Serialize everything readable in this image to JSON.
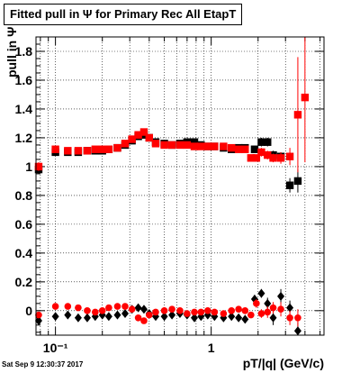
{
  "chart_data": {
    "type": "scatter",
    "title": "Fitted pull in  Ψ  for Primary Rec All EtapT",
    "xlabel": "pT/|q| (GeV/c)",
    "ylabel": "pull in  Ψ",
    "footer": "Sat Sep  9 12:30:37 2017",
    "xscale": "log",
    "xlim": [
      0.075,
      5.3
    ],
    "ylim": [
      -0.17,
      1.9
    ],
    "grid": true,
    "x_ticks": [
      {
        "value": 0.1,
        "label": "10⁻¹"
      },
      {
        "value": 1,
        "label": "1"
      }
    ],
    "y_ticks": [
      {
        "value": 0,
        "label": "0"
      },
      {
        "value": 0.2,
        "label": "0.2"
      },
      {
        "value": 0.4,
        "label": "0.4"
      },
      {
        "value": 0.6,
        "label": "0.6"
      },
      {
        "value": 0.8,
        "label": "0.8"
      },
      {
        "value": 1,
        "label": "1"
      },
      {
        "value": 1.2,
        "label": "1.2"
      },
      {
        "value": 1.4,
        "label": "1.4"
      },
      {
        "value": 1.6,
        "label": "1.6"
      },
      {
        "value": 1.8,
        "label": "1.8"
      }
    ],
    "series": [
      {
        "color": "#000000",
        "marker": "square",
        "points": [
          [
            0.078,
            0.98,
            0.03
          ],
          [
            0.1,
            1.1,
            0.01
          ],
          [
            0.12,
            1.1,
            0.01
          ],
          [
            0.14,
            1.1,
            0.01
          ],
          [
            0.16,
            1.11,
            0.01
          ],
          [
            0.18,
            1.11,
            0.01
          ],
          [
            0.2,
            1.11,
            0.01
          ],
          [
            0.22,
            1.12,
            0.01
          ],
          [
            0.25,
            1.13,
            0.01
          ],
          [
            0.28,
            1.15,
            0.01
          ],
          [
            0.31,
            1.18,
            0.01
          ],
          [
            0.34,
            1.21,
            0.01
          ],
          [
            0.37,
            1.22,
            0.01
          ],
          [
            0.4,
            1.2,
            0.01
          ],
          [
            0.44,
            1.17,
            0.01
          ],
          [
            0.5,
            1.16,
            0.01
          ],
          [
            0.56,
            1.15,
            0.01
          ],
          [
            0.63,
            1.16,
            0.01
          ],
          [
            0.7,
            1.17,
            0.01
          ],
          [
            0.78,
            1.17,
            0.01
          ],
          [
            0.86,
            1.15,
            0.01
          ],
          [
            0.95,
            1.14,
            0.01
          ],
          [
            1.05,
            1.14,
            0.01
          ],
          [
            1.2,
            1.13,
            0.01
          ],
          [
            1.35,
            1.12,
            0.01
          ],
          [
            1.5,
            1.13,
            0.01
          ],
          [
            1.65,
            1.13,
            0.01
          ],
          [
            1.9,
            1.12,
            0.02
          ],
          [
            2.1,
            1.17,
            0.03
          ],
          [
            2.3,
            1.17,
            0.03
          ],
          [
            2.5,
            1.08,
            0.03
          ],
          [
            2.8,
            1.07,
            0.03
          ],
          [
            3.2,
            0.87,
            0.05
          ],
          [
            3.6,
            0.9,
            0.08
          ]
        ]
      },
      {
        "color": "#000000",
        "marker": "diamond",
        "points": [
          [
            0.078,
            -0.07,
            0.02
          ],
          [
            0.1,
            -0.04,
            0.01
          ],
          [
            0.12,
            -0.03,
            0.01
          ],
          [
            0.14,
            -0.05,
            0.01
          ],
          [
            0.16,
            -0.05,
            0.01
          ],
          [
            0.18,
            -0.04,
            0.01
          ],
          [
            0.2,
            -0.03,
            0.01
          ],
          [
            0.22,
            -0.04,
            0.01
          ],
          [
            0.25,
            -0.03,
            0.01
          ],
          [
            0.28,
            -0.02,
            0.01
          ],
          [
            0.31,
            0.01,
            0.01
          ],
          [
            0.34,
            0.02,
            0.01
          ],
          [
            0.37,
            0.01,
            0.01
          ],
          [
            0.4,
            -0.02,
            0.01
          ],
          [
            0.44,
            -0.04,
            0.01
          ],
          [
            0.5,
            -0.04,
            0.01
          ],
          [
            0.56,
            -0.03,
            0.01
          ],
          [
            0.63,
            -0.02,
            0.01
          ],
          [
            0.7,
            -0.03,
            0.01
          ],
          [
            0.78,
            -0.05,
            0.01
          ],
          [
            0.86,
            -0.04,
            0.01
          ],
          [
            0.95,
            -0.03,
            0.01
          ],
          [
            1.05,
            -0.04,
            0.01
          ],
          [
            1.2,
            -0.05,
            0.01
          ],
          [
            1.35,
            -0.04,
            0.01
          ],
          [
            1.5,
            -0.05,
            0.01
          ],
          [
            1.65,
            -0.06,
            0.02
          ],
          [
            1.9,
            0.08,
            0.03
          ],
          [
            2.1,
            0.12,
            0.03
          ],
          [
            2.3,
            0.05,
            0.04
          ],
          [
            2.5,
            -0.05,
            0.05
          ],
          [
            2.8,
            0.1,
            0.05
          ],
          [
            3.2,
            0.02,
            0.05
          ],
          [
            3.6,
            -0.14,
            0.06
          ]
        ]
      },
      {
        "color": "#ff0000",
        "marker": "square",
        "points": [
          [
            0.078,
            1.0,
            0.03
          ],
          [
            0.1,
            1.12,
            0.01
          ],
          [
            0.12,
            1.11,
            0.01
          ],
          [
            0.14,
            1.11,
            0.01
          ],
          [
            0.16,
            1.11,
            0.01
          ],
          [
            0.18,
            1.12,
            0.01
          ],
          [
            0.2,
            1.12,
            0.01
          ],
          [
            0.22,
            1.12,
            0.01
          ],
          [
            0.25,
            1.13,
            0.01
          ],
          [
            0.28,
            1.16,
            0.01
          ],
          [
            0.31,
            1.19,
            0.01
          ],
          [
            0.34,
            1.22,
            0.01
          ],
          [
            0.37,
            1.24,
            0.01
          ],
          [
            0.4,
            1.2,
            0.01
          ],
          [
            0.44,
            1.16,
            0.01
          ],
          [
            0.5,
            1.15,
            0.01
          ],
          [
            0.56,
            1.15,
            0.01
          ],
          [
            0.63,
            1.15,
            0.01
          ],
          [
            0.7,
            1.15,
            0.01
          ],
          [
            0.78,
            1.14,
            0.01
          ],
          [
            0.86,
            1.14,
            0.01
          ],
          [
            0.95,
            1.14,
            0.01
          ],
          [
            1.05,
            1.14,
            0.01
          ],
          [
            1.2,
            1.14,
            0.01
          ],
          [
            1.35,
            1.13,
            0.01
          ],
          [
            1.5,
            1.12,
            0.01
          ],
          [
            1.65,
            1.12,
            0.02
          ],
          [
            1.8,
            1.06,
            0.02
          ],
          [
            1.95,
            1.06,
            0.02
          ],
          [
            2.1,
            1.1,
            0.03
          ],
          [
            2.3,
            1.08,
            0.03
          ],
          [
            2.5,
            1.06,
            0.03
          ],
          [
            2.8,
            1.06,
            0.04
          ],
          [
            3.2,
            1.07,
            0.06
          ],
          [
            3.6,
            1.36,
            0.4
          ],
          [
            4.0,
            1.48,
            0.45
          ]
        ]
      },
      {
        "color": "#ff0000",
        "marker": "circle",
        "points": [
          [
            0.078,
            -0.03,
            0.02
          ],
          [
            0.1,
            0.03,
            0.01
          ],
          [
            0.12,
            0.03,
            0.01
          ],
          [
            0.14,
            0.02,
            0.01
          ],
          [
            0.16,
            0.0,
            0.01
          ],
          [
            0.18,
            -0.01,
            0.01
          ],
          [
            0.2,
            0.0,
            0.01
          ],
          [
            0.22,
            0.02,
            0.01
          ],
          [
            0.25,
            0.03,
            0.01
          ],
          [
            0.28,
            0.03,
            0.01
          ],
          [
            0.31,
            0.01,
            0.01
          ],
          [
            0.34,
            -0.05,
            0.01
          ],
          [
            0.37,
            -0.07,
            0.01
          ],
          [
            0.4,
            -0.03,
            0.01
          ],
          [
            0.44,
            -0.01,
            0.01
          ],
          [
            0.5,
            0.0,
            0.01
          ],
          [
            0.56,
            0.01,
            0.01
          ],
          [
            0.63,
            0.0,
            0.01
          ],
          [
            0.7,
            -0.02,
            0.01
          ],
          [
            0.78,
            -0.01,
            0.01
          ],
          [
            0.86,
            -0.01,
            0.01
          ],
          [
            0.95,
            0.0,
            0.01
          ],
          [
            1.05,
            -0.01,
            0.01
          ],
          [
            1.2,
            -0.02,
            0.01
          ],
          [
            1.35,
            0.0,
            0.01
          ],
          [
            1.5,
            0.01,
            0.02
          ],
          [
            1.65,
            0.0,
            0.02
          ],
          [
            1.8,
            -0.03,
            0.02
          ],
          [
            1.95,
            0.05,
            0.03
          ],
          [
            2.1,
            -0.02,
            0.03
          ],
          [
            2.3,
            -0.01,
            0.04
          ],
          [
            2.5,
            0.02,
            0.04
          ],
          [
            2.8,
            0.01,
            0.05
          ],
          [
            3.2,
            -0.05,
            0.05
          ],
          [
            3.6,
            -0.05,
            0.06
          ]
        ]
      }
    ]
  }
}
